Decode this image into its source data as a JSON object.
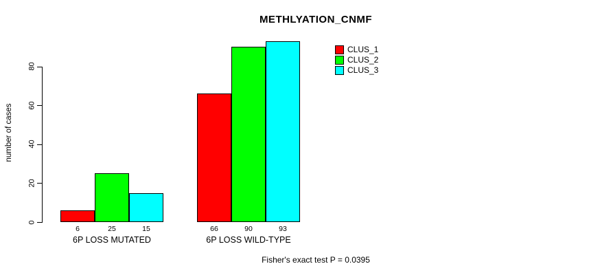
{
  "chart_data": {
    "type": "bar",
    "title": "METHLYATION_CNMF",
    "ylabel": "number of cases",
    "xlabel": "",
    "categories": [
      "6P LOSS MUTATED",
      "6P LOSS WILD-TYPE"
    ],
    "series": [
      {
        "name": "CLUS_1",
        "color": "#FF0000",
        "values": [
          6,
          66
        ]
      },
      {
        "name": "CLUS_2",
        "color": "#00FF00",
        "values": [
          25,
          90
        ]
      },
      {
        "name": "CLUS_3",
        "color": "#00FFFF",
        "values": [
          15,
          93
        ]
      }
    ],
    "bar_value_labels": [
      [
        "6",
        "25",
        "15"
      ],
      [
        "66",
        "90",
        "93"
      ]
    ],
    "yticks": [
      0,
      20,
      40,
      60,
      80
    ],
    "ylim": [
      0,
      93
    ],
    "grid": false,
    "legend_position": "top-right",
    "annotation": "Fisher's exact test P = 0.0395"
  }
}
